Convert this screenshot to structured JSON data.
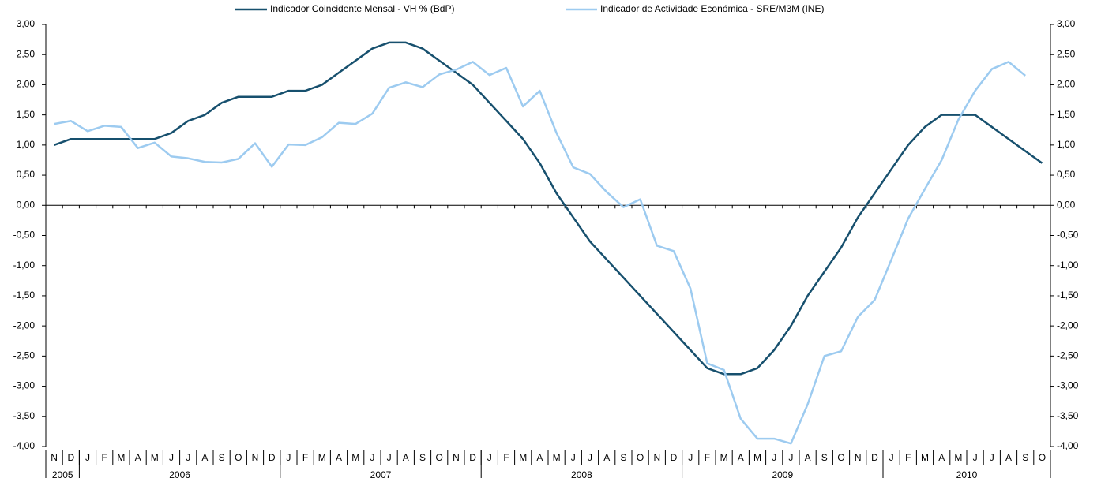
{
  "chart_data": {
    "type": "line",
    "categories": [
      "N",
      "D",
      "J",
      "F",
      "M",
      "A",
      "M",
      "J",
      "J",
      "A",
      "S",
      "O",
      "N",
      "D",
      "J",
      "F",
      "M",
      "A",
      "M",
      "J",
      "J",
      "A",
      "S",
      "O",
      "N",
      "D",
      "J",
      "F",
      "M",
      "A",
      "M",
      "J",
      "J",
      "A",
      "S",
      "O",
      "N",
      "D",
      "J",
      "F",
      "M",
      "A",
      "M",
      "J",
      "J",
      "A",
      "S",
      "O",
      "N",
      "D",
      "J",
      "F",
      "M",
      "A",
      "M",
      "J",
      "J",
      "A",
      "S",
      "O"
    ],
    "year_groups": [
      {
        "label": "2005",
        "months": 2
      },
      {
        "label": "2006",
        "months": 12
      },
      {
        "label": "2007",
        "months": 12
      },
      {
        "label": "2008",
        "months": 12
      },
      {
        "label": "2009",
        "months": 12
      },
      {
        "label": "2010",
        "months": 10
      }
    ],
    "series": [
      {
        "name": "Indicador Coincidente Mensal - VH % (BdP)",
        "color": "#17506e",
        "values": [
          1.0,
          1.1,
          1.1,
          1.1,
          1.1,
          1.1,
          1.1,
          1.2,
          1.4,
          1.5,
          1.7,
          1.8,
          1.8,
          1.8,
          1.9,
          1.9,
          2.0,
          2.2,
          2.4,
          2.6,
          2.7,
          2.7,
          2.6,
          2.4,
          2.2,
          2.0,
          1.7,
          1.4,
          1.1,
          0.7,
          0.2,
          -0.2,
          -0.6,
          -0.9,
          -1.2,
          -1.5,
          -1.8,
          -2.1,
          -2.4,
          -2.7,
          -2.8,
          -2.8,
          -2.7,
          -2.4,
          -2.0,
          -1.5,
          -1.1,
          -0.7,
          -0.2,
          0.2,
          0.6,
          1.0,
          1.3,
          1.5,
          1.5,
          1.5,
          1.3,
          1.1,
          0.9,
          0.7
        ]
      },
      {
        "name": "Indicador de Actividade Económica - SRE/M3M (INE)",
        "color": "#9dcbf0",
        "values": [
          1.35,
          1.4,
          1.23,
          1.32,
          1.3,
          0.95,
          1.04,
          0.81,
          0.78,
          0.72,
          0.71,
          0.77,
          1.03,
          0.64,
          1.01,
          1.0,
          1.13,
          1.37,
          1.35,
          1.52,
          1.95,
          2.04,
          1.96,
          2.17,
          2.25,
          2.38,
          2.16,
          2.28,
          1.64,
          1.9,
          1.2,
          0.63,
          0.52,
          0.22,
          -0.03,
          0.1,
          -0.67,
          -0.76,
          -1.38,
          -2.62,
          -2.73,
          -3.54,
          -3.87,
          -3.87,
          -3.95,
          -3.3,
          -2.5,
          -2.42,
          -1.85,
          -1.57,
          -0.9,
          -0.22,
          0.27,
          0.75,
          1.42,
          1.9,
          2.26,
          2.38,
          2.15,
          null
        ]
      }
    ],
    "ylim": [
      -4,
      3
    ],
    "yticks": [
      {
        "value": -4,
        "label": "-4,00"
      },
      {
        "value": -3.5,
        "label": "-3,50"
      },
      {
        "value": -3,
        "label": "-3,00"
      },
      {
        "value": -2.5,
        "label": "-2,50"
      },
      {
        "value": -2,
        "label": "-2,00"
      },
      {
        "value": -1.5,
        "label": "-1,50"
      },
      {
        "value": -1,
        "label": "-1,00"
      },
      {
        "value": -0.5,
        "label": "-0,50"
      },
      {
        "value": 0,
        "label": "0,00"
      },
      {
        "value": 0.5,
        "label": "0,50"
      },
      {
        "value": 1,
        "label": "1,00"
      },
      {
        "value": 1.5,
        "label": "1,50"
      },
      {
        "value": 2,
        "label": "2,00"
      },
      {
        "value": 2.5,
        "label": "2,50"
      },
      {
        "value": 3,
        "label": "3,00"
      }
    ],
    "y2lim": [
      -4,
      3
    ],
    "y2ticks": [
      {
        "value": -4,
        "label": "-4,00"
      },
      {
        "value": -3.5,
        "label": "-3,50"
      },
      {
        "value": -3,
        "label": "-3,00"
      },
      {
        "value": -2.5,
        "label": "-2,50"
      },
      {
        "value": -2,
        "label": "-2,00"
      },
      {
        "value": -1.5,
        "label": "-1,50"
      },
      {
        "value": -1,
        "label": "-1,00"
      },
      {
        "value": -0.5,
        "label": "-0,50"
      },
      {
        "value": 0,
        "label": "0,00"
      },
      {
        "value": 0.5,
        "label": "0,50"
      },
      {
        "value": 1,
        "label": "1,00"
      },
      {
        "value": 1.5,
        "label": "1,50"
      },
      {
        "value": 2,
        "label": "2,00"
      },
      {
        "value": 2.5,
        "label": "2,50"
      },
      {
        "value": 3,
        "label": "3,00"
      }
    ],
    "legend": "top"
  }
}
